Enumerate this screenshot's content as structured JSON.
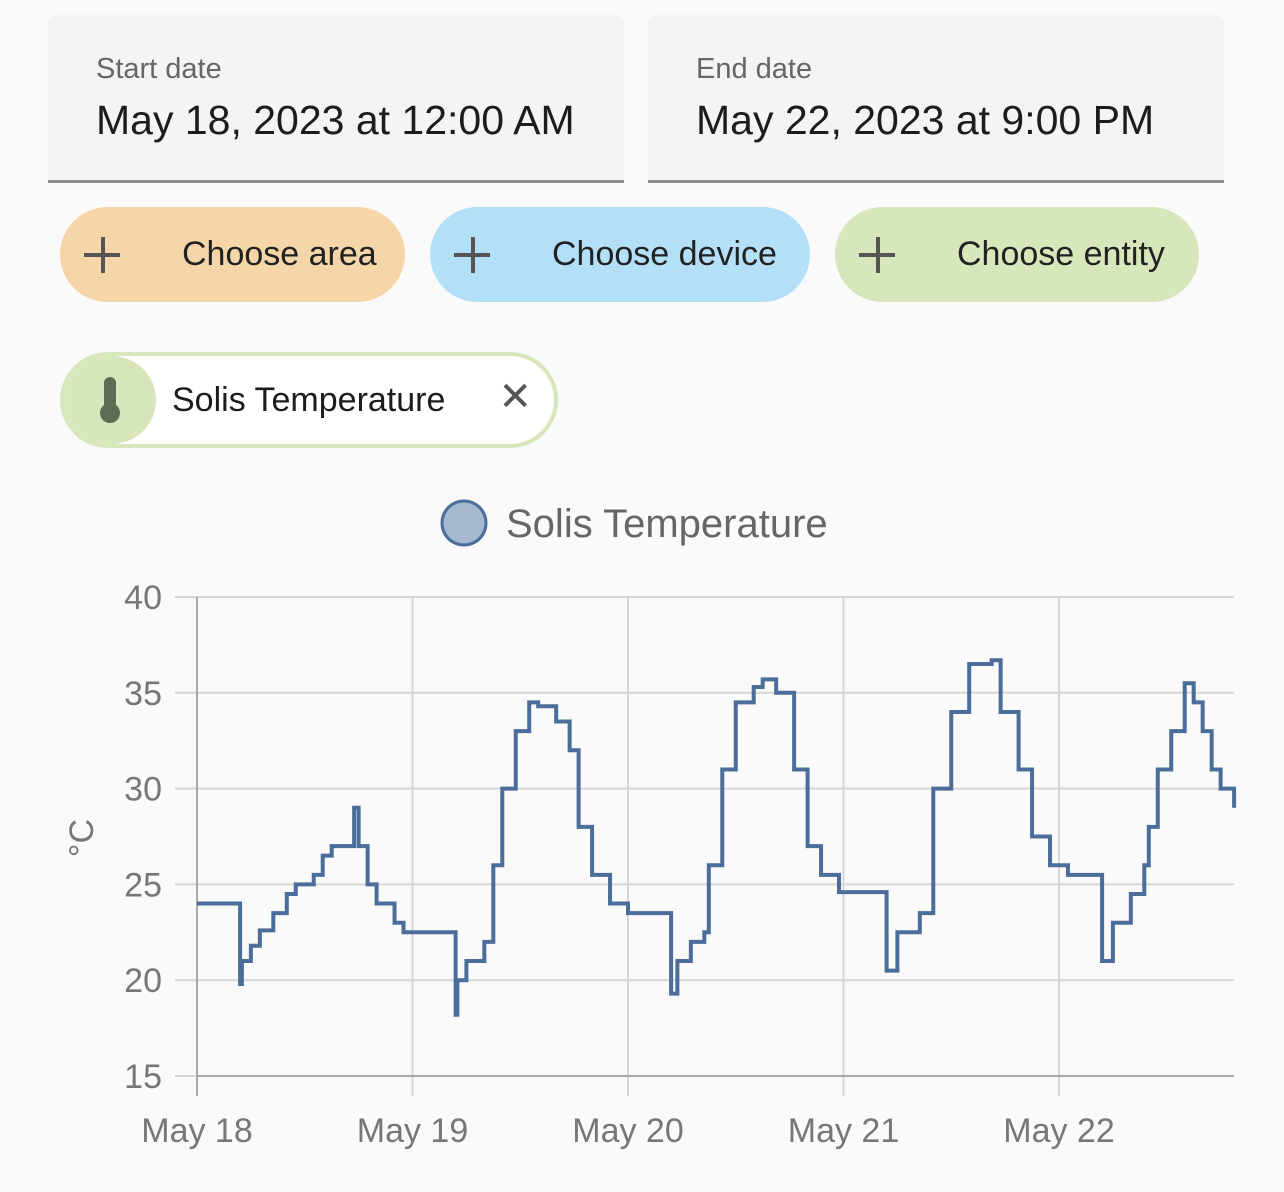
{
  "start_date": {
    "label": "Start date",
    "value": "May 18, 2023 at 12:00 AM"
  },
  "end_date": {
    "label": "End date",
    "value": "May 22, 2023 at 9:00 PM"
  },
  "pickers": {
    "area": "Choose area",
    "device": "Choose device",
    "entity": "Choose entity"
  },
  "colors": {
    "area": "#f6d6a8",
    "device": "#b3e0f8",
    "entity": "#d7e6bb",
    "line": "#4a6d99"
  },
  "selected_entity": {
    "label": "Solis Temperature",
    "icon": "thermometer-icon"
  },
  "chart_data": {
    "type": "line",
    "title": "",
    "legend": [
      "Solis Temperature"
    ],
    "legend_placement": "top",
    "xlabel": "",
    "ylabel": "°C",
    "ylim": [
      15,
      40
    ],
    "yticks": [
      "15",
      "20",
      "25",
      "30",
      "35",
      "40"
    ],
    "xtick_labels": [
      "May 18",
      "May 19",
      "May 20",
      "May 21",
      "May 22"
    ],
    "x_unit": "hours since May 18 00:00",
    "xlim": [
      0,
      115.5
    ],
    "grid": true,
    "series": [
      {
        "name": "Solis Temperature",
        "step": true,
        "x": [
          0,
          4.8,
          5,
          6,
          7,
          8.5,
          10,
          11,
          13,
          14,
          15,
          17.5,
          18,
          19,
          20,
          22,
          23,
          28.8,
          29,
          30,
          32,
          33,
          34,
          35.5,
          37,
          38,
          40,
          41.5,
          42.5,
          44,
          46,
          48,
          52.8,
          53.5,
          55,
          56.5,
          57,
          58.5,
          60,
          62,
          63,
          64.5,
          66.5,
          68,
          69.5,
          71.5,
          76.8,
          78,
          80.5,
          82,
          84,
          86,
          88.5,
          89.5,
          91.5,
          93,
          95,
          97,
          100.8,
          102,
          104,
          105.5,
          106,
          107,
          108.5,
          110,
          111,
          112,
          113,
          114,
          115.5
        ],
        "y": [
          24,
          19.8,
          21,
          21.8,
          22.6,
          23.5,
          24.5,
          25,
          25.5,
          26.5,
          27,
          29,
          27,
          25,
          24,
          23,
          22.5,
          18.2,
          20,
          21,
          22,
          26,
          30,
          33,
          34.5,
          34.3,
          33.5,
          32,
          28,
          25.5,
          24,
          23.5,
          19.3,
          21,
          22,
          22.5,
          26,
          31,
          34.5,
          35.3,
          35.7,
          35,
          31,
          27,
          25.5,
          24.6,
          20.5,
          22.5,
          23.5,
          30,
          34,
          36.5,
          36.7,
          34,
          31,
          27.5,
          26,
          25.5,
          21,
          23,
          24.5,
          26,
          28,
          31,
          33,
          35.5,
          34.5,
          33,
          31,
          30,
          29
        ]
      }
    ]
  }
}
